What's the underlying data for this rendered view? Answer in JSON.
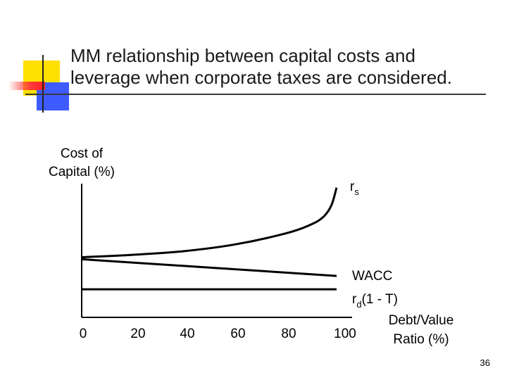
{
  "slide": {
    "title": "MM relationship between capital costs and\nleverage when corporate taxes are considered.",
    "page_number": "36"
  },
  "colors": {
    "accent_yellow": "#ffe000",
    "accent_blue": "#3d5bff",
    "accent_red": "#ff2020"
  },
  "chart_data": {
    "type": "line",
    "ylabel_line1": "Cost of",
    "ylabel_line2": "Capital (%)",
    "xlabel_line1": "Debt/Value",
    "xlabel_line2": "Ratio (%)",
    "x_ticks": [
      "0",
      "20",
      "40",
      "60",
      "80",
      "100"
    ],
    "xlim": [
      0,
      100
    ],
    "ylim": [
      0,
      100
    ],
    "grid": false,
    "series": [
      {
        "name": "rs",
        "label_main": "r",
        "label_sub": "s",
        "x": [
          0,
          20,
          40,
          60,
          80,
          90,
          95,
          98,
          100
        ],
        "y": [
          45,
          46.8,
          49.5,
          54.5,
          62.8,
          69.5,
          75.5,
          84,
          97
        ]
      },
      {
        "name": "WACC",
        "label_main": "WACC",
        "label_sub": "",
        "x": [
          0,
          100
        ],
        "y": [
          43.5,
          31
        ]
      },
      {
        "name": "rd(1 - T)",
        "label_main": "r",
        "label_sub": "d",
        "label_tail": "(1 - T)",
        "x": [
          0,
          100
        ],
        "y": [
          21,
          21
        ]
      }
    ]
  }
}
